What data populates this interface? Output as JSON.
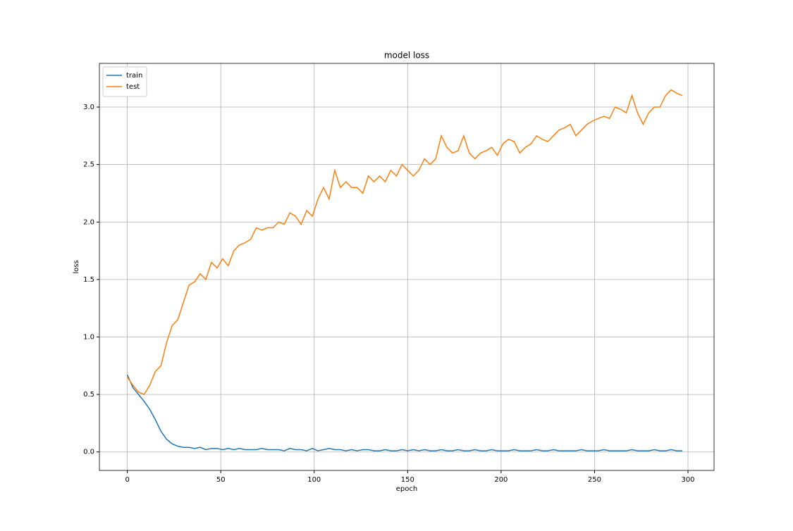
{
  "chart_data": {
    "type": "line",
    "title": "model loss",
    "x_label": "epoch",
    "y_label": "loss",
    "x": [
      0,
      3,
      6,
      9,
      12,
      15,
      18,
      21,
      24,
      27,
      30,
      33,
      36,
      39,
      42,
      45,
      48,
      51,
      54,
      57,
      60,
      63,
      66,
      69,
      72,
      75,
      78,
      81,
      84,
      87,
      90,
      93,
      96,
      99,
      102,
      105,
      108,
      111,
      114,
      117,
      120,
      123,
      126,
      129,
      132,
      135,
      138,
      141,
      144,
      147,
      150,
      153,
      156,
      159,
      162,
      165,
      168,
      171,
      174,
      177,
      180,
      183,
      186,
      189,
      192,
      195,
      198,
      201,
      204,
      207,
      210,
      213,
      216,
      219,
      222,
      225,
      228,
      231,
      234,
      237,
      240,
      243,
      246,
      249,
      252,
      255,
      258,
      261,
      264,
      267,
      270,
      273,
      276,
      279,
      282,
      285,
      288,
      291,
      294,
      297
    ],
    "series": [
      {
        "name": "train",
        "color": "#1f77b4",
        "values": [
          0.67,
          0.56,
          0.5,
          0.44,
          0.37,
          0.28,
          0.18,
          0.11,
          0.07,
          0.05,
          0.04,
          0.04,
          0.03,
          0.04,
          0.02,
          0.03,
          0.03,
          0.02,
          0.03,
          0.02,
          0.03,
          0.02,
          0.02,
          0.02,
          0.03,
          0.02,
          0.02,
          0.02,
          0.01,
          0.03,
          0.02,
          0.02,
          0.01,
          0.03,
          0.01,
          0.02,
          0.03,
          0.02,
          0.02,
          0.01,
          0.02,
          0.01,
          0.02,
          0.02,
          0.01,
          0.01,
          0.02,
          0.01,
          0.01,
          0.02,
          0.01,
          0.02,
          0.01,
          0.02,
          0.01,
          0.01,
          0.02,
          0.01,
          0.01,
          0.02,
          0.01,
          0.01,
          0.02,
          0.01,
          0.01,
          0.02,
          0.01,
          0.01,
          0.01,
          0.02,
          0.01,
          0.01,
          0.01,
          0.02,
          0.01,
          0.01,
          0.02,
          0.01,
          0.01,
          0.01,
          0.01,
          0.02,
          0.01,
          0.01,
          0.01,
          0.02,
          0.01,
          0.01,
          0.01,
          0.01,
          0.02,
          0.01,
          0.01,
          0.01,
          0.02,
          0.01,
          0.01,
          0.02,
          0.01,
          0.01
        ]
      },
      {
        "name": "test",
        "color": "#ff7f0e",
        "values": [
          0.65,
          0.58,
          0.52,
          0.5,
          0.58,
          0.7,
          0.75,
          0.95,
          1.1,
          1.15,
          1.3,
          1.45,
          1.48,
          1.55,
          1.5,
          1.65,
          1.6,
          1.68,
          1.62,
          1.75,
          1.8,
          1.82,
          1.85,
          1.95,
          1.93,
          1.95,
          1.95,
          2.0,
          1.98,
          2.08,
          2.05,
          1.98,
          2.1,
          2.05,
          2.2,
          2.3,
          2.2,
          2.45,
          2.3,
          2.35,
          2.3,
          2.3,
          2.25,
          2.4,
          2.35,
          2.4,
          2.35,
          2.45,
          2.4,
          2.5,
          2.45,
          2.4,
          2.45,
          2.55,
          2.5,
          2.55,
          2.75,
          2.65,
          2.6,
          2.62,
          2.75,
          2.6,
          2.55,
          2.6,
          2.62,
          2.65,
          2.58,
          2.68,
          2.72,
          2.7,
          2.6,
          2.65,
          2.68,
          2.75,
          2.72,
          2.7,
          2.75,
          2.8,
          2.82,
          2.85,
          2.75,
          2.8,
          2.85,
          2.88,
          2.9,
          2.92,
          2.9,
          3.0,
          2.98,
          2.95,
          3.1,
          2.95,
          2.85,
          2.95,
          3.0,
          3.0,
          3.1,
          3.15,
          3.12,
          3.1
        ]
      }
    ],
    "xlim": [
      -14.95,
      313.95
    ],
    "xticks": [
      0,
      50,
      100,
      150,
      200,
      250,
      300
    ],
    "ylim": [
      -0.161,
      3.38
    ],
    "yticks": [
      {
        "value": 0,
        "label": "0.0"
      },
      0.5,
      {
        "value": 1,
        "label": "1.0"
      },
      1.5,
      {
        "value": 2,
        "label": "2.0"
      },
      2.5,
      {
        "value": 3,
        "label": "3.0"
      }
    ],
    "grid": true,
    "legend": "upper left"
  }
}
